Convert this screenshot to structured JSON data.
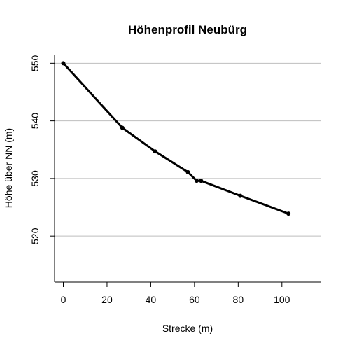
{
  "chart_data": {
    "type": "line",
    "title": "Höhenprofil Neubürg",
    "xlabel": "Strecke (m)",
    "ylabel": "Höhe über NN (m)",
    "xlim": [
      -4,
      118
    ],
    "ylim": [
      512,
      551.5
    ],
    "x_ticks": [
      0,
      20,
      40,
      60,
      80,
      100
    ],
    "y_ticks": [
      520,
      530,
      540,
      550
    ],
    "grid": "horizontal",
    "series": [
      {
        "x": [
          0,
          27,
          42,
          57,
          61,
          63,
          81,
          103
        ],
        "y": [
          550.0,
          538.8,
          534.7,
          531.1,
          529.6,
          529.6,
          527.0,
          523.9
        ]
      }
    ],
    "colors": {
      "line": "#000000",
      "grid": "#bebebe",
      "axis": "#000000"
    }
  }
}
